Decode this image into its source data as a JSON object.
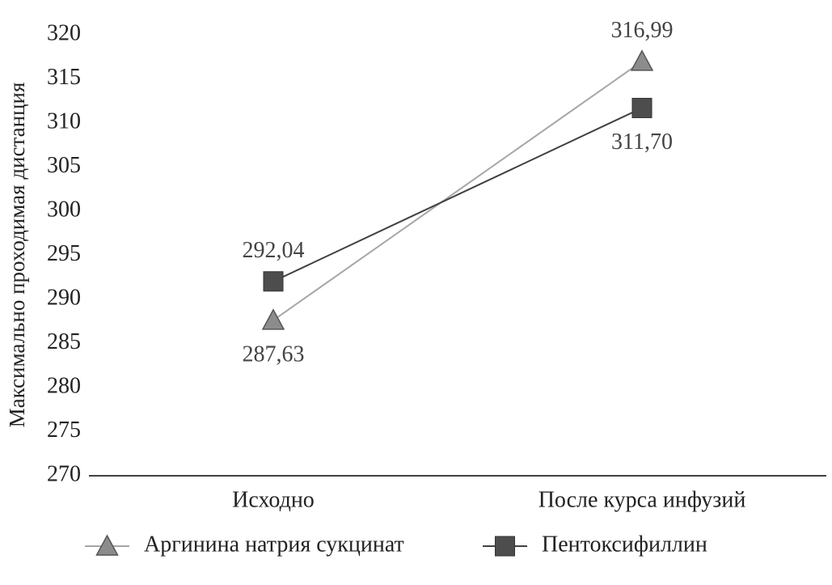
{
  "chart_data": {
    "type": "line",
    "y_label": "Максимально проходимая дистанция",
    "categories": [
      "Исходно",
      "После курса инфузий"
    ],
    "series": [
      {
        "name": "Аргинина натрия сукцинат",
        "color": "#a6a6a6",
        "marker": "triangle",
        "marker_color": "#8c8c8c",
        "values": [
          287.63,
          316.99
        ],
        "value_labels": [
          "287,63",
          "316,99"
        ]
      },
      {
        "name": "Пентоксифиллин",
        "color": "#404040",
        "marker": "square",
        "marker_color": "#4d4d4d",
        "values": [
          292.04,
          311.7
        ],
        "value_labels": [
          "292,04",
          "311,70"
        ]
      }
    ],
    "ylim": [
      270,
      320
    ],
    "yticks": [
      270,
      275,
      280,
      285,
      290,
      295,
      300,
      305,
      310,
      315,
      320
    ],
    "grid": false,
    "legend": "bottom"
  }
}
